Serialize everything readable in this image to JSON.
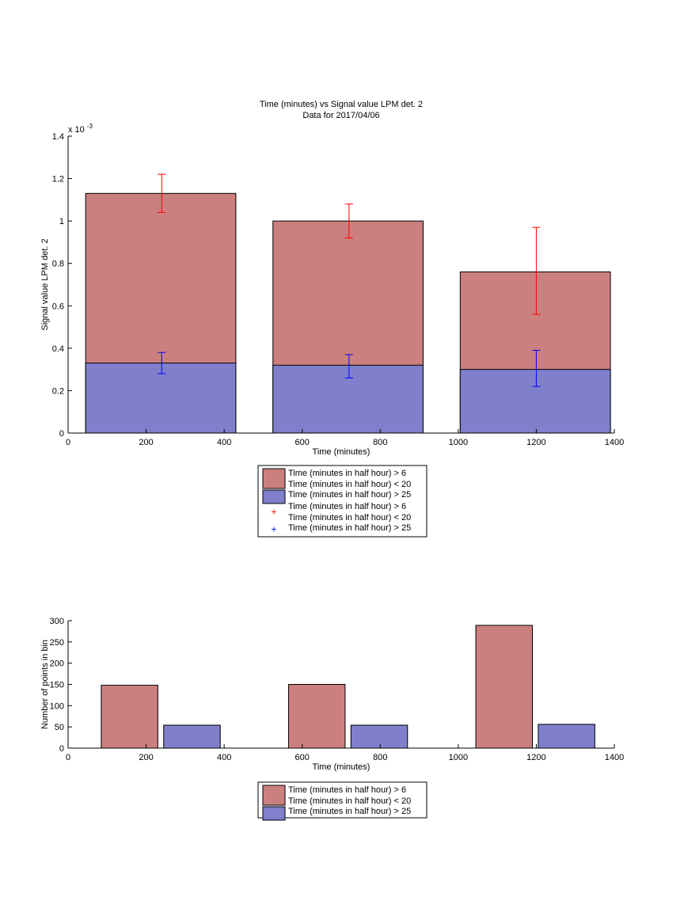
{
  "colors": {
    "red_bar": "#cc7f7f",
    "blue_bar": "#7f7fcc",
    "red_err": "#ff0000",
    "blue_err": "#0000ff"
  },
  "chart_data": [
    {
      "type": "bar",
      "title": "Time (minutes) vs Signal value LPM det. 2",
      "subtitle": "Data for 2017/04/06",
      "xlabel": "Time (minutes)",
      "ylabel": "Signal value LPM det. 2",
      "xlim": [
        0,
        1400
      ],
      "ylim": [
        0,
        0.0014
      ],
      "y_exponent_label": "x 10",
      "y_exponent_power": "-3",
      "xticks": [
        "0",
        "200",
        "400",
        "600",
        "800",
        "1000",
        "1200",
        "1400"
      ],
      "yticks": [
        "0",
        "0.2",
        "0.4",
        "0.6",
        "0.8",
        "1",
        "1.2",
        "1.4"
      ],
      "grid": false,
      "legend_position": "below",
      "legend": [
        {
          "kind": "bar",
          "color": "red",
          "label": "Time (minutes in half hour) > 6",
          "label2": "Time (minutes in half hour) < 20"
        },
        {
          "kind": "bar",
          "color": "blue",
          "label": "Time (minutes in half hour) > 25"
        },
        {
          "kind": "marker",
          "color": "red",
          "label": "Time (minutes in half hour) > 6",
          "label2": "Time (minutes in half hour) < 20"
        },
        {
          "kind": "marker",
          "color": "blue",
          "label": "Time (minutes in half hour) > 25"
        }
      ],
      "bars": [
        {
          "x_start": 45,
          "x_end": 430,
          "red": 0.00113,
          "blue": 0.00033
        },
        {
          "x_start": 525,
          "x_end": 910,
          "red": 0.001,
          "blue": 0.00032
        },
        {
          "x_start": 1005,
          "x_end": 1390,
          "red": 0.00076,
          "blue": 0.0003
        }
      ],
      "errorbars": [
        {
          "series": "red",
          "x": 240,
          "y": 0.00113,
          "low": 0.00104,
          "high": 0.00122
        },
        {
          "series": "blue",
          "x": 240,
          "y": 0.00033,
          "low": 0.00028,
          "high": 0.00038
        },
        {
          "series": "red",
          "x": 720,
          "y": 0.001,
          "low": 0.00092,
          "high": 0.00108
        },
        {
          "series": "blue",
          "x": 720,
          "y": 0.00032,
          "low": 0.00026,
          "high": 0.00037
        },
        {
          "series": "red",
          "x": 1200,
          "y": 0.00076,
          "low": 0.00056,
          "high": 0.00097
        },
        {
          "series": "blue",
          "x": 1200,
          "y": 0.0003,
          "low": 0.00022,
          "high": 0.00039
        }
      ]
    },
    {
      "type": "bar",
      "xlabel": "Time (minutes)",
      "ylabel": "Number of points in bin",
      "xlim": [
        0,
        1400
      ],
      "ylim": [
        0,
        300
      ],
      "xticks": [
        "0",
        "200",
        "400",
        "600",
        "800",
        "1000",
        "1200",
        "1400"
      ],
      "yticks": [
        "0",
        "50",
        "100",
        "150",
        "200",
        "250",
        "300"
      ],
      "grid": false,
      "legend_position": "below",
      "legend": [
        {
          "kind": "bar",
          "color": "red",
          "label": "Time (minutes in half hour) > 6",
          "label2": "Time (minutes in half hour) < 20"
        },
        {
          "kind": "bar",
          "color": "blue",
          "label": "Time (minutes in half hour) > 25"
        }
      ],
      "bars": [
        {
          "series": "red",
          "x_start": 85,
          "x_end": 230,
          "value": 148
        },
        {
          "series": "blue",
          "x_start": 245,
          "x_end": 390,
          "value": 54
        },
        {
          "series": "red",
          "x_start": 565,
          "x_end": 710,
          "value": 150
        },
        {
          "series": "blue",
          "x_start": 725,
          "x_end": 870,
          "value": 54
        },
        {
          "series": "red",
          "x_start": 1045,
          "x_end": 1190,
          "value": 289
        },
        {
          "series": "blue",
          "x_start": 1205,
          "x_end": 1350,
          "value": 56
        }
      ]
    }
  ]
}
